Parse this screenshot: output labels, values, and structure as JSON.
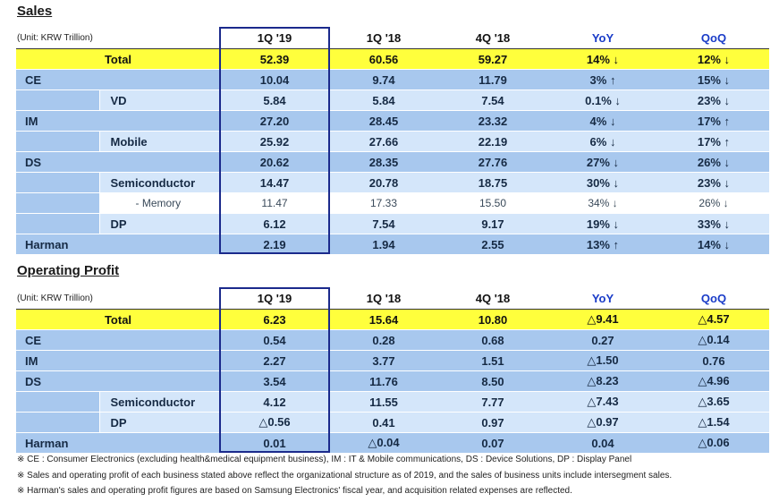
{
  "sales": {
    "title": "Sales",
    "unit": "(Unit: KRW Trillion)",
    "headers": [
      "1Q '19",
      "1Q '18",
      "4Q '18",
      "YoY",
      "QoQ"
    ],
    "rows": [
      {
        "kind": "total",
        "label": "Total",
        "v": [
          "52.39",
          "60.56",
          "59.27",
          "14% ↓",
          "12% ↓"
        ]
      },
      {
        "kind": "main",
        "label": "CE",
        "v": [
          "10.04",
          "9.74",
          "11.79",
          "3% ↑",
          "15% ↓"
        ]
      },
      {
        "kind": "sub",
        "label": "VD",
        "v": [
          "5.84",
          "5.84",
          "7.54",
          "0.1% ↓",
          "23% ↓"
        ]
      },
      {
        "kind": "main",
        "label": "IM",
        "v": [
          "27.20",
          "28.45",
          "23.32",
          "4% ↓",
          "17% ↑"
        ]
      },
      {
        "kind": "sub",
        "label": "Mobile",
        "v": [
          "25.92",
          "27.66",
          "22.19",
          "6% ↓",
          "17% ↑"
        ]
      },
      {
        "kind": "main",
        "label": "DS",
        "v": [
          "20.62",
          "28.35",
          "27.76",
          "27% ↓",
          "26% ↓"
        ]
      },
      {
        "kind": "sub",
        "label": "Semiconductor",
        "v": [
          "14.47",
          "20.78",
          "18.75",
          "30% ↓",
          "23% ↓"
        ]
      },
      {
        "kind": "mem",
        "label": "- Memory",
        "v": [
          "11.47",
          "17.33",
          "15.50",
          "34% ↓",
          "26% ↓"
        ]
      },
      {
        "kind": "sub",
        "label": "DP",
        "v": [
          "6.12",
          "7.54",
          "9.17",
          "19% ↓",
          "33% ↓"
        ]
      },
      {
        "kind": "main",
        "label": "Harman",
        "v": [
          "2.19",
          "1.94",
          "2.55",
          "13% ↑",
          "14% ↓"
        ]
      }
    ]
  },
  "op": {
    "title": "Operating Profit",
    "unit": "(Unit: KRW Trillion)",
    "headers": [
      "1Q '19",
      "1Q '18",
      "4Q '18",
      "YoY",
      "QoQ"
    ],
    "rows": [
      {
        "kind": "total",
        "label": "Total",
        "v": [
          "6.23",
          "15.64",
          "10.80",
          "△9.41",
          "△4.57"
        ]
      },
      {
        "kind": "main",
        "label": "CE",
        "v": [
          "0.54",
          "0.28",
          "0.68",
          "0.27",
          "△0.14"
        ]
      },
      {
        "kind": "main",
        "label": "IM",
        "v": [
          "2.27",
          "3.77",
          "1.51",
          "△1.50",
          "0.76"
        ]
      },
      {
        "kind": "main",
        "label": "DS",
        "v": [
          "3.54",
          "11.76",
          "8.50",
          "△8.23",
          "△4.96"
        ]
      },
      {
        "kind": "sub",
        "label": "Semiconductor",
        "v": [
          "4.12",
          "11.55",
          "7.77",
          "△7.43",
          "△3.65"
        ]
      },
      {
        "kind": "sub",
        "label": "DP",
        "v": [
          "△0.56",
          "0.41",
          "0.97",
          "△0.97",
          "△1.54"
        ]
      },
      {
        "kind": "main",
        "label": "Harman",
        "v": [
          "0.01",
          "△0.04",
          "0.07",
          "0.04",
          "△0.06"
        ]
      }
    ]
  },
  "notes": [
    "※ CE : Consumer Electronics (excluding health&medical equipment business),  IM : IT & Mobile communications,  DS : Device Solutions,  DP : Display Panel",
    "※ Sales and operating profit of each business stated above reflect the organizational structure  as of 2019, and the sales of business units include intersegment sales.",
    "※ Harman's sales and operating profit figures are based on Samsung Electronics' fiscal year, and acquisition related expenses are reflected."
  ]
}
